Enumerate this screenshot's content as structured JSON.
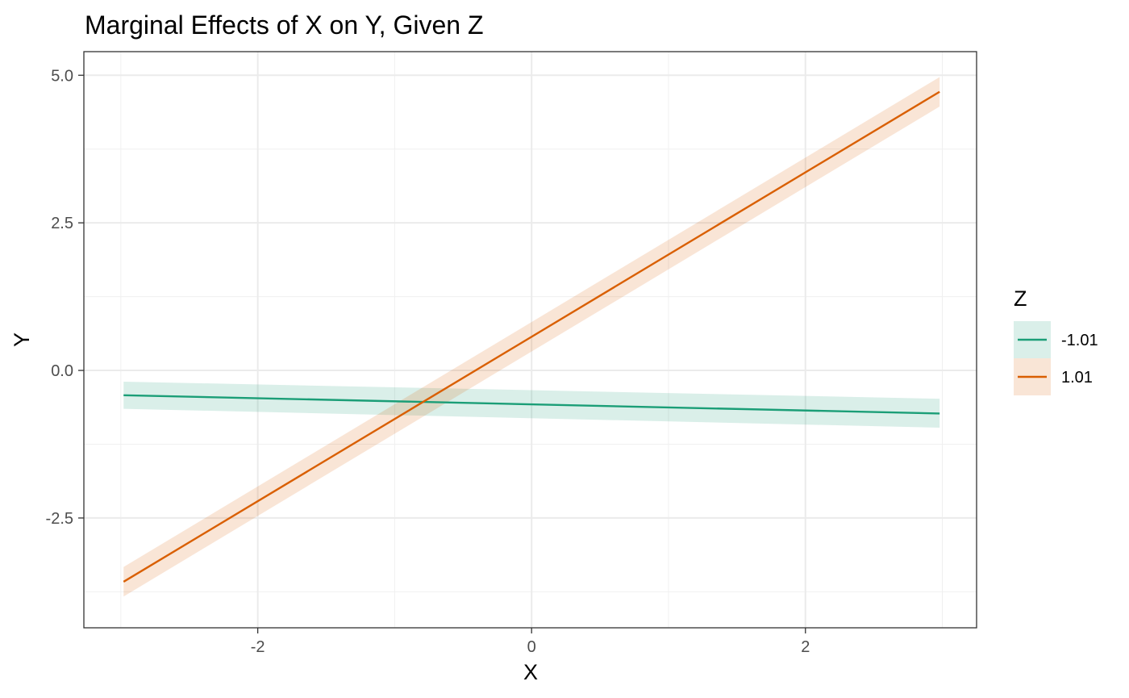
{
  "chart_data": {
    "type": "line",
    "title": "Marginal Effects of X on Y, Given Z",
    "xlabel": "X",
    "ylabel": "Y",
    "xlim": [
      -3.27,
      3.25
    ],
    "ylim": [
      -4.36,
      5.4
    ],
    "x_ticks": [
      -2,
      0,
      2
    ],
    "x_tick_labels": [
      "-2",
      "0",
      "2"
    ],
    "y_ticks": [
      -2.5,
      0.0,
      2.5,
      5.0
    ],
    "y_tick_labels": [
      "-2.5",
      "0.0",
      "2.5",
      "5.0"
    ],
    "grid": true,
    "legend": {
      "title": "Z",
      "position": "right"
    },
    "series": [
      {
        "name": "-1.01",
        "color": "#1B9E77",
        "x": [
          -2.98,
          2.98
        ],
        "y": [
          -0.42,
          -0.73
        ],
        "ci_lower": [
          -0.65,
          -0.97
        ],
        "ci_upper": [
          -0.19,
          -0.48
        ]
      },
      {
        "name": "1.01",
        "color": "#D95F02",
        "x": [
          -2.98,
          2.98
        ],
        "y": [
          -3.58,
          4.72
        ],
        "ci_lower": [
          -3.83,
          4.47
        ],
        "ci_upper": [
          -3.33,
          4.97
        ]
      }
    ]
  }
}
